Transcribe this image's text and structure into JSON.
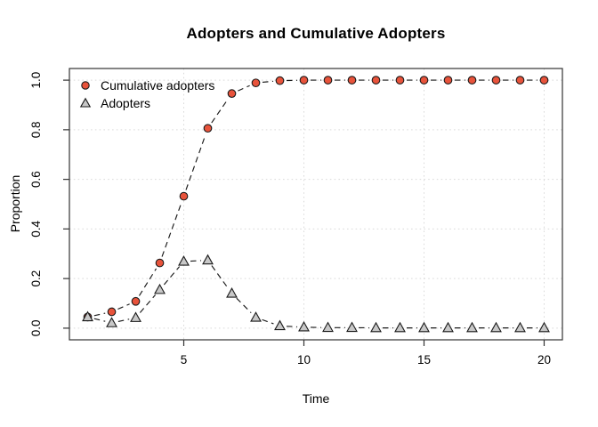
{
  "chart_data": {
    "type": "line",
    "title": "Adopters and Cumulative Adopters",
    "xlabel": "Time",
    "ylabel": "Proportion",
    "x": [
      1,
      2,
      3,
      4,
      5,
      6,
      7,
      8,
      9,
      10,
      11,
      12,
      13,
      14,
      15,
      16,
      17,
      18,
      19,
      20
    ],
    "series": [
      {
        "name": "Cumulative adopters",
        "marker": "circle",
        "marker_fill": "#E8533B",
        "line_style": "dashed",
        "values": [
          0.045,
          0.066,
          0.108,
          0.263,
          0.532,
          0.806,
          0.946,
          0.989,
          0.998,
          1.0,
          1.0,
          1.0,
          1.0,
          1.0,
          1.0,
          1.0,
          1.0,
          1.0,
          1.0,
          1.0
        ]
      },
      {
        "name": "Adopters",
        "marker": "triangle",
        "marker_fill": "#C8C8C8",
        "line_style": "dashed",
        "values": [
          0.045,
          0.021,
          0.042,
          0.155,
          0.269,
          0.274,
          0.14,
          0.043,
          0.009,
          0.004,
          0.002,
          0.002,
          0.001,
          0.001,
          0.001,
          0.001,
          0.001,
          0.001,
          0.001,
          0.001
        ]
      }
    ],
    "xticks": [
      "5",
      "10",
      "15",
      "20"
    ],
    "xtick_values": [
      5,
      10,
      15,
      20
    ],
    "yticks": [
      "0.0",
      "0.2",
      "0.4",
      "0.6",
      "0.8",
      "1.0"
    ],
    "ytick_values": [
      0.0,
      0.2,
      0.4,
      0.6,
      0.8,
      1.0
    ],
    "xlim": [
      1,
      20
    ],
    "ylim": [
      0,
      1
    ],
    "grid": true,
    "legend_position": "top-left",
    "colors": {
      "line": "#1a1a1a",
      "axis": "#333333",
      "grid": "#d9d9d9",
      "text": "#000000",
      "background": "#ffffff",
      "cumulative_marker": "#E8533B",
      "adopters_marker": "#C8C8C8"
    }
  }
}
